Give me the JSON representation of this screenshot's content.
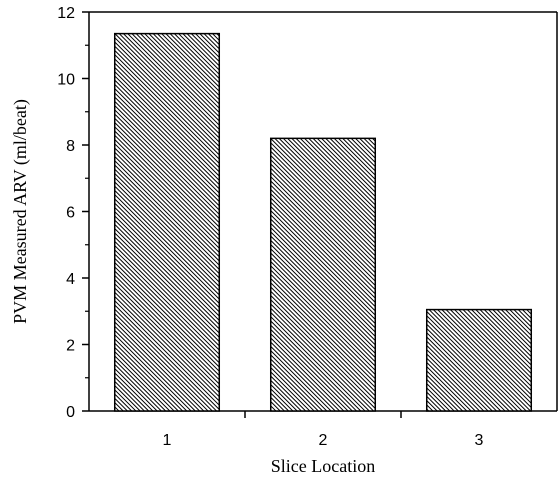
{
  "chart_data": {
    "type": "bar",
    "categories": [
      "1",
      "2",
      "3"
    ],
    "values": [
      11.35,
      8.2,
      3.05
    ],
    "xlabel": "Slice Location",
    "ylabel": "PVM Measured ARV (ml/beat)",
    "ylim": [
      0,
      12
    ],
    "yticks": [
      "0",
      "2",
      "4",
      "6",
      "8",
      "10",
      "12"
    ],
    "grid": false,
    "bar_fill": "diagonal-hatch",
    "colors": {
      "bar_fill": "#000000",
      "bar_background": "#ffffff",
      "axis": "#000000"
    }
  }
}
